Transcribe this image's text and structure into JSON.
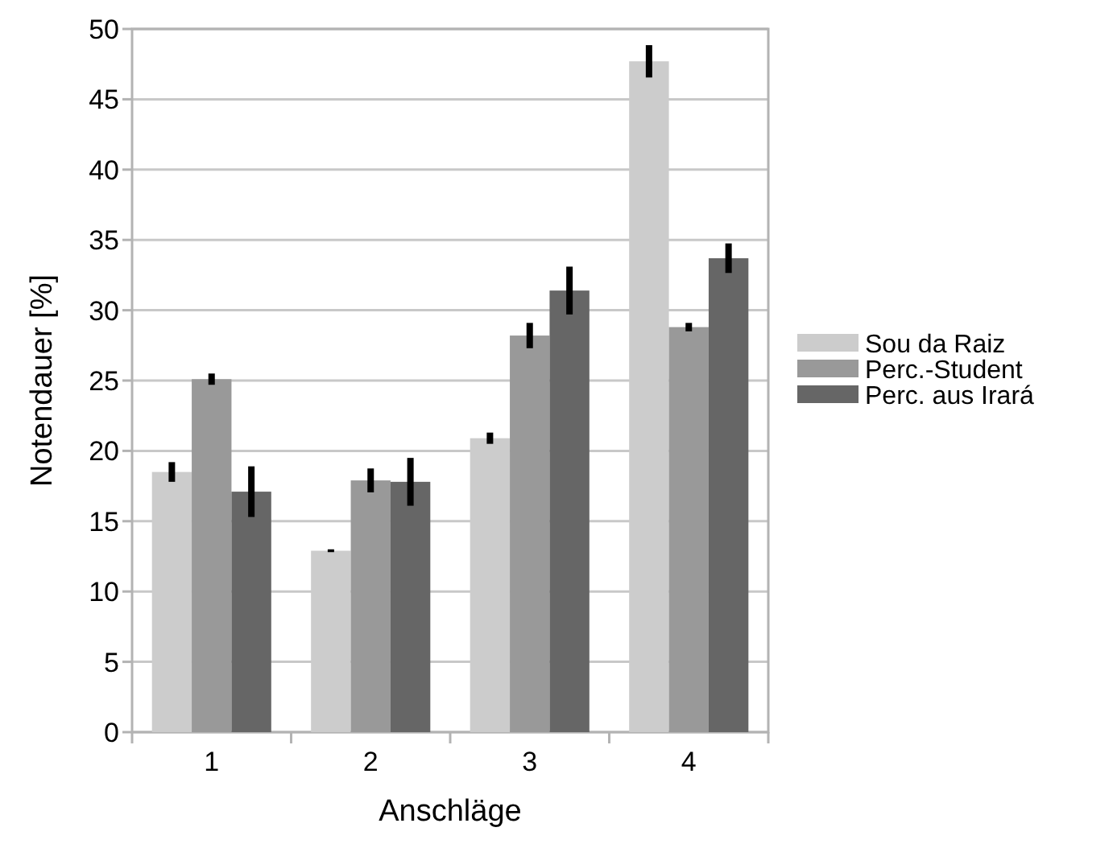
{
  "chart_data": {
    "type": "bar",
    "xlabel": "Anschläge",
    "ylabel": "Notendauer [%]",
    "categories": [
      "1",
      "2",
      "3",
      "4"
    ],
    "series": [
      {
        "name": "Sou da Raiz",
        "color": "#cccccc",
        "values": [
          18.5,
          12.9,
          20.9,
          47.7
        ],
        "errors": [
          0.7,
          0.1,
          0.4,
          1.15
        ]
      },
      {
        "name": "Perc.-Student",
        "color": "#999999",
        "values": [
          25.1,
          17.9,
          28.2,
          28.8
        ],
        "errors": [
          0.4,
          0.85,
          0.9,
          0.3
        ]
      },
      {
        "name": "Perc. aus Irará",
        "color": "#666666",
        "values": [
          17.1,
          17.8,
          31.4,
          33.7
        ],
        "errors": [
          1.8,
          1.7,
          1.7,
          1.05
        ]
      }
    ],
    "ylim": [
      0,
      50
    ],
    "yticks": [
      0,
      5,
      10,
      15,
      20,
      25,
      30,
      35,
      40,
      45,
      50
    ],
    "grid": "y",
    "legend": "right"
  }
}
